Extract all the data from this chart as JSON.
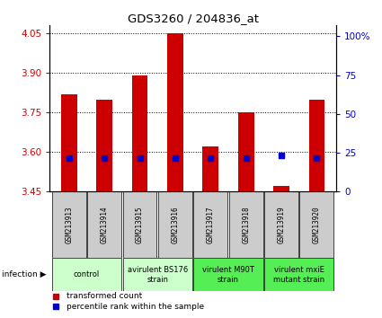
{
  "title": "GDS3260 / 204836_at",
  "samples": [
    "GSM213913",
    "GSM213914",
    "GSM213915",
    "GSM213916",
    "GSM213917",
    "GSM213918",
    "GSM213919",
    "GSM213920"
  ],
  "transformed_counts": [
    3.82,
    3.8,
    3.89,
    4.05,
    3.62,
    3.75,
    3.47,
    3.8
  ],
  "percentile_ranks": [
    20,
    20,
    20,
    20,
    20,
    20,
    22,
    20
  ],
  "ylim_left": [
    3.45,
    4.08
  ],
  "yticks_left": [
    3.45,
    3.6,
    3.75,
    3.9,
    4.05
  ],
  "yticks_right": [
    0,
    25,
    50,
    75,
    100
  ],
  "ylim_right": [
    0,
    107
  ],
  "bar_color": "#cc0000",
  "dot_color": "#0000cc",
  "bar_width": 0.45,
  "groups_info": [
    {
      "label": "control",
      "cols": [
        0,
        1
      ],
      "color": "#ccffcc"
    },
    {
      "label": "avirulent BS176\nstrain",
      "cols": [
        2,
        3
      ],
      "color": "#ccffcc"
    },
    {
      "label": "virulent M90T\nstrain",
      "cols": [
        4,
        5
      ],
      "color": "#55ee55"
    },
    {
      "label": "virulent mxiE\nmutant strain",
      "cols": [
        6,
        7
      ],
      "color": "#55ee55"
    }
  ],
  "legend_red": "transformed count",
  "legend_blue": "percentile rank within the sample",
  "infection_label": "infection",
  "background_color": "#ffffff",
  "tick_label_color_left": "#cc0000",
  "tick_label_color_right": "#0000cc",
  "sample_box_color": "#cccccc",
  "plot_bg": "#ffffff"
}
